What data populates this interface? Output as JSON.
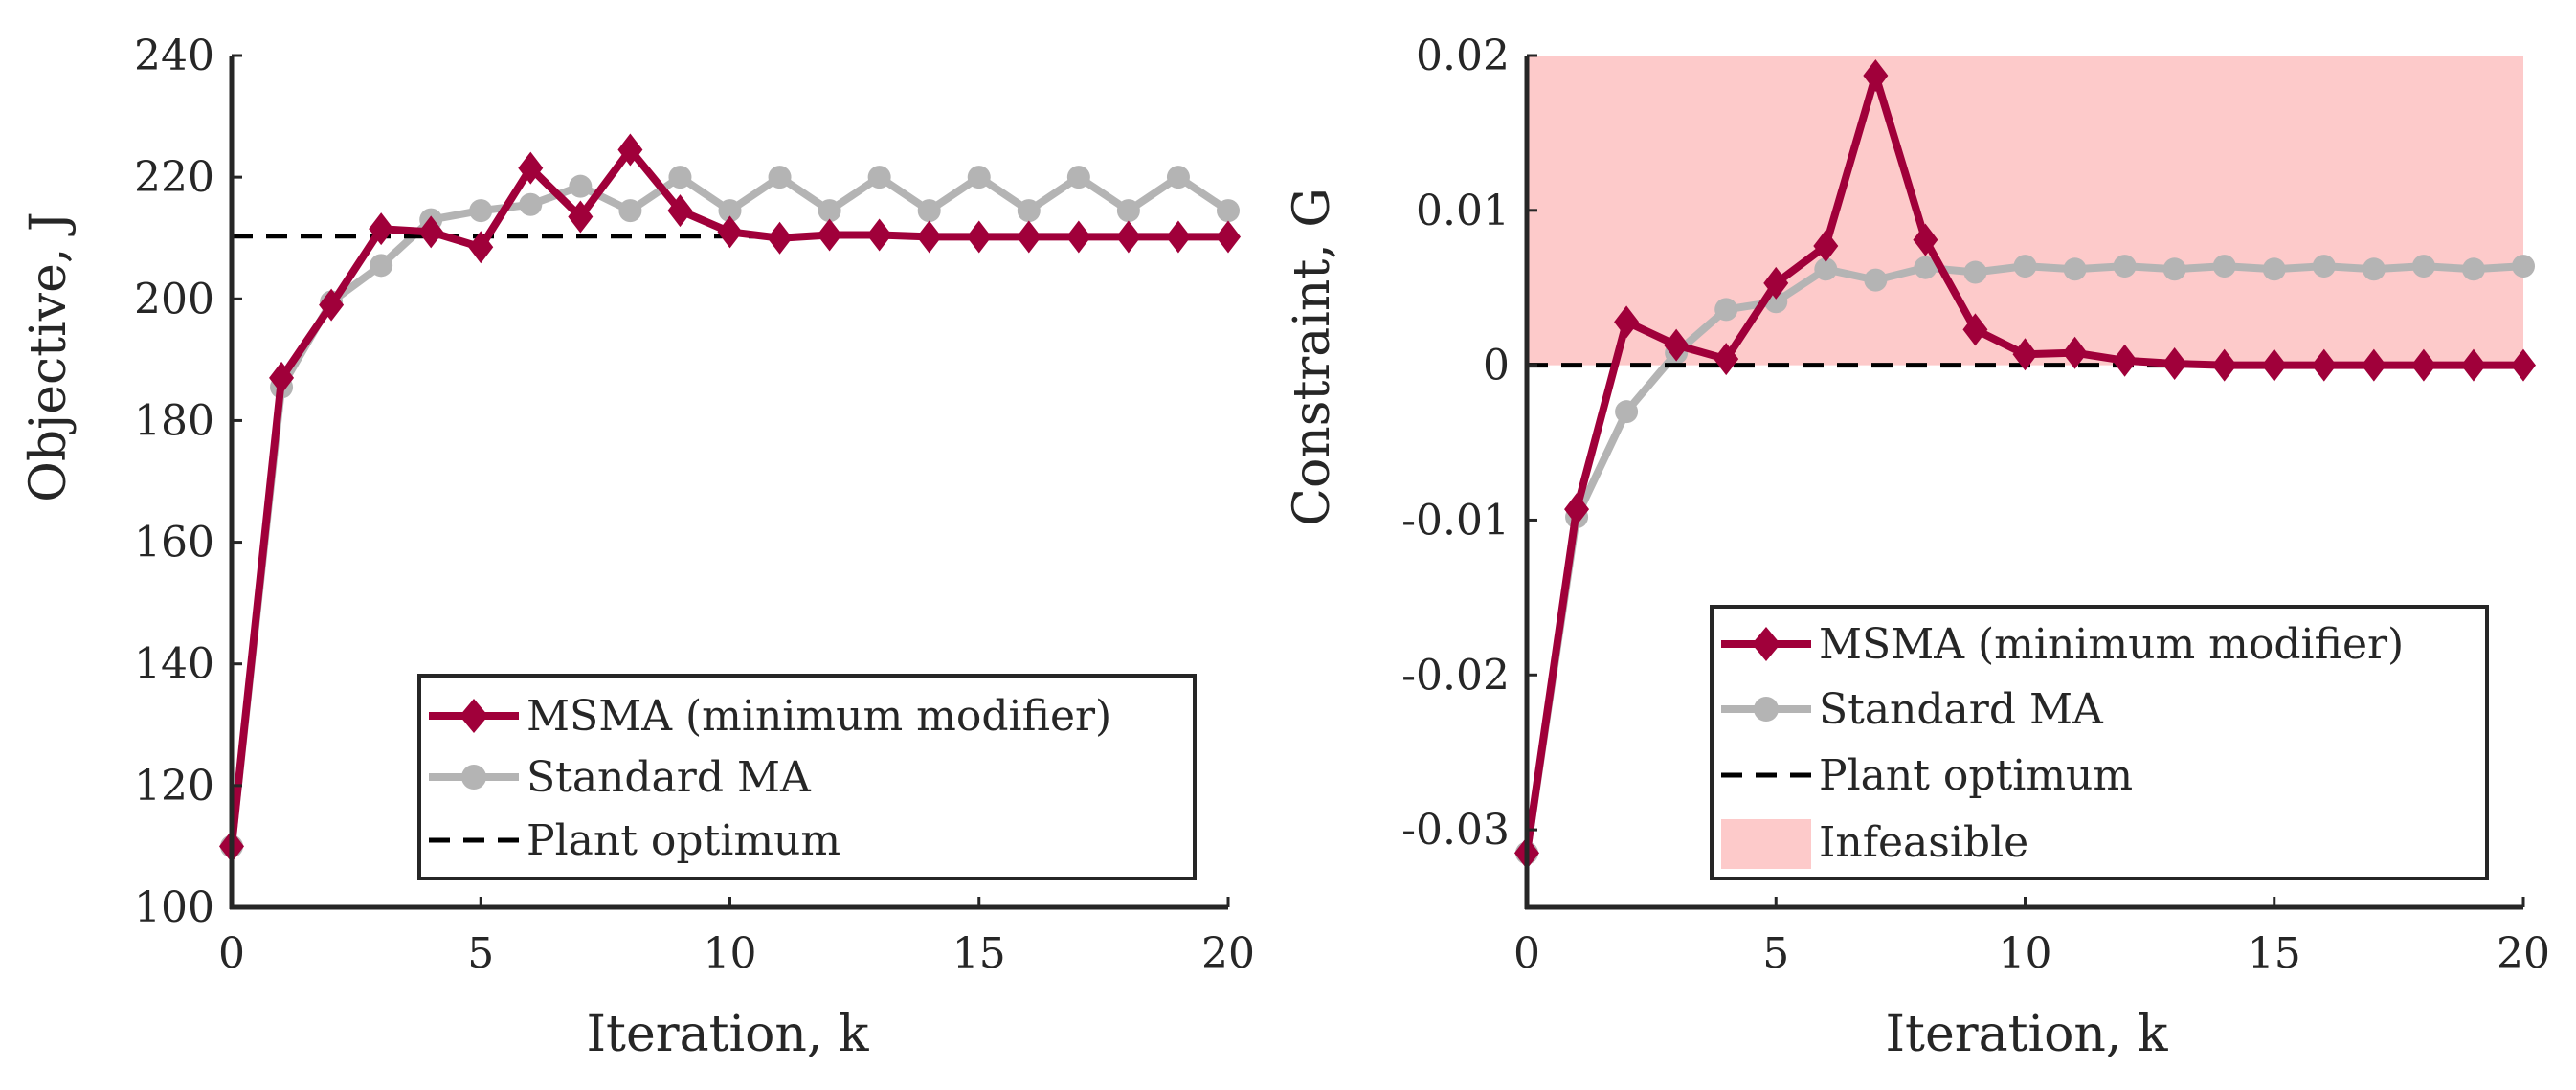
{
  "colors": {
    "msma": "#a0003a",
    "standard": "#b4b4b4",
    "optimum": "#000000",
    "infeasible": "#fdcaca",
    "axis": "#262626"
  },
  "chart_data": [
    {
      "type": "line",
      "xlabel": "Iteration, k",
      "ylabel": "Objective, J",
      "xlim": [
        0,
        20
      ],
      "ylim": [
        100,
        240
      ],
      "xticks": [
        "0",
        "5",
        "10",
        "15",
        "20"
      ],
      "yticks": [
        "100",
        "120",
        "140",
        "160",
        "180",
        "200",
        "220",
        "240"
      ],
      "legend_position": "bottom-right",
      "series": [
        {
          "name": "MSMA (minimum modifier)",
          "marker": "diamond",
          "x": [
            0,
            1,
            2,
            3,
            4,
            5,
            6,
            7,
            8,
            9,
            10,
            11,
            12,
            13,
            14,
            15,
            16,
            17,
            18,
            19,
            20
          ],
          "y": [
            110,
            187,
            199,
            211.5,
            211,
            208.5,
            221.5,
            213.5,
            224.5,
            214.5,
            211,
            210,
            210.5,
            210.5,
            210.2,
            210.2,
            210.2,
            210.2,
            210.2,
            210.2,
            210.2
          ]
        },
        {
          "name": "Standard MA",
          "marker": "circle",
          "x": [
            0,
            1,
            2,
            3,
            4,
            5,
            6,
            7,
            8,
            9,
            10,
            11,
            12,
            13,
            14,
            15,
            16,
            17,
            18,
            19,
            20
          ],
          "y": [
            110,
            185.5,
            199.5,
            205.5,
            213,
            214.5,
            215.5,
            218.5,
            214.5,
            220,
            214.5,
            220,
            214.5,
            220,
            214.5,
            220,
            214.5,
            220,
            214.5,
            220,
            214.5
          ]
        },
        {
          "name": "Plant optimum",
          "style": "dashed",
          "x": [
            0,
            20
          ],
          "y": [
            210.3,
            210.3
          ]
        }
      ]
    },
    {
      "type": "line",
      "xlabel": "Iteration, k",
      "ylabel": "Constraint, G",
      "xlim": [
        0,
        20
      ],
      "ylim": [
        -0.035,
        0.02
      ],
      "xticks": [
        "0",
        "5",
        "10",
        "15",
        "20"
      ],
      "yticks": [
        "-0.03",
        "-0.02",
        "-0.01",
        "0",
        "0.01",
        "0.02"
      ],
      "yticks_values": [
        -0.03,
        -0.02,
        -0.01,
        0,
        0.01,
        0.02
      ],
      "legend_position": "bottom-right",
      "infeasible_region": {
        "name": "Infeasible",
        "ymin": 0,
        "ymax": 0.02
      },
      "series": [
        {
          "name": "MSMA (minimum modifier)",
          "marker": "diamond",
          "x": [
            0,
            1,
            2,
            3,
            4,
            5,
            6,
            7,
            8,
            9,
            10,
            11,
            12,
            13,
            14,
            15,
            16,
            17,
            18,
            19,
            20
          ],
          "y": [
            -0.0315,
            -0.0093,
            0.0028,
            0.0013,
            0.0004,
            0.0053,
            0.0077,
            0.0187,
            0.0081,
            0.0023,
            0.0007,
            0.0008,
            0.0003,
            0.0001,
            0.0,
            0.0,
            0.0,
            0.0,
            0.0,
            0.0,
            0.0
          ]
        },
        {
          "name": "Standard MA",
          "marker": "circle",
          "x": [
            0,
            1,
            2,
            3,
            4,
            5,
            6,
            7,
            8,
            9,
            10,
            11,
            12,
            13,
            14,
            15,
            16,
            17,
            18,
            19,
            20
          ],
          "y": [
            -0.0315,
            -0.0098,
            -0.003,
            0.0008,
            0.0036,
            0.0041,
            0.0062,
            0.0055,
            0.0063,
            0.006,
            0.0064,
            0.0062,
            0.0064,
            0.0062,
            0.0064,
            0.0062,
            0.0064,
            0.0062,
            0.0064,
            0.0062,
            0.0064
          ]
        },
        {
          "name": "Plant optimum",
          "style": "dashed",
          "x": [
            0,
            20
          ],
          "y": [
            0,
            0
          ]
        }
      ]
    }
  ]
}
